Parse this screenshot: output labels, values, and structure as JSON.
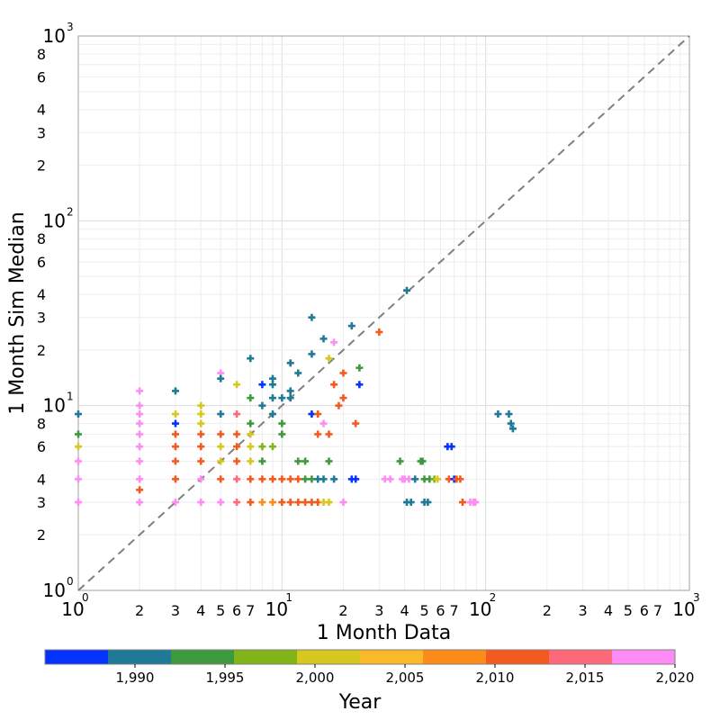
{
  "chart_data": {
    "type": "scatter",
    "title": "",
    "xlabel": "1 Month Data",
    "ylabel": "1 Month Sim Median",
    "xscale": "log",
    "yscale": "log",
    "xlim": [
      1,
      1000
    ],
    "ylim": [
      1,
      1000
    ],
    "grid": true,
    "marker": "plus",
    "reference_line": {
      "type": "y=x",
      "style": "dashed",
      "color": "#808080"
    },
    "major_ticks": [
      {
        "base": "10",
        "exp": "0"
      },
      {
        "base": "10",
        "exp": "1"
      },
      {
        "base": "10",
        "exp": "2"
      },
      {
        "base": "10",
        "exp": "3"
      }
    ],
    "minor_tick_labels": [
      "2",
      "3",
      "4",
      "5",
      "6",
      "7",
      "8"
    ],
    "x_minor_labelled": [
      "2",
      "3",
      "4",
      "5",
      "6",
      "7"
    ],
    "y_minor_labelled": [
      "2",
      "3",
      "4",
      "6",
      "8"
    ],
    "colorbar": {
      "label": "Year",
      "ticks": [
        "1,990",
        "1,995",
        "2,000",
        "2,005",
        "2,010",
        "2,015",
        "2,020"
      ],
      "tick_values": [
        1990,
        1995,
        2000,
        2005,
        2010,
        2015,
        2020
      ],
      "range": [
        1985,
        2020
      ],
      "colors": [
        "#0433ff",
        "#1e7a96",
        "#3c9a3c",
        "#80b419",
        "#d6c81e",
        "#fbb92a",
        "#fb8c19",
        "#f45a1e",
        "#ff6a7b",
        "#ff8cf4"
      ]
    },
    "points": [
      {
        "x": 1,
        "y": 9,
        "year": 1991
      },
      {
        "x": 1,
        "y": 7,
        "year": 1995
      },
      {
        "x": 1,
        "y": 6,
        "year": 2002
      },
      {
        "x": 1,
        "y": 5,
        "year": 2020
      },
      {
        "x": 1,
        "y": 4,
        "year": 2020
      },
      {
        "x": 1,
        "y": 3,
        "year": 2020
      },
      {
        "x": 2,
        "y": 12,
        "year": 2020
      },
      {
        "x": 2,
        "y": 10,
        "year": 2020
      },
      {
        "x": 2,
        "y": 9,
        "year": 2020
      },
      {
        "x": 2,
        "y": 8,
        "year": 2020
      },
      {
        "x": 2,
        "y": 7,
        "year": 2020
      },
      {
        "x": 2,
        "y": 6,
        "year": 2020
      },
      {
        "x": 2,
        "y": 5,
        "year": 2020
      },
      {
        "x": 2,
        "y": 4,
        "year": 2020
      },
      {
        "x": 2,
        "y": 3.5,
        "year": 2011
      },
      {
        "x": 2,
        "y": 3,
        "year": 2020
      },
      {
        "x": 3,
        "y": 12,
        "year": 1991
      },
      {
        "x": 3,
        "y": 9,
        "year": 2002
      },
      {
        "x": 3,
        "y": 8,
        "year": 1987
      },
      {
        "x": 3,
        "y": 7,
        "year": 2011
      },
      {
        "x": 3,
        "y": 6,
        "year": 2011
      },
      {
        "x": 3,
        "y": 5,
        "year": 2011
      },
      {
        "x": 3,
        "y": 4,
        "year": 2011
      },
      {
        "x": 3,
        "y": 3,
        "year": 2020
      },
      {
        "x": 4,
        "y": 10,
        "year": 2002
      },
      {
        "x": 4,
        "y": 9,
        "year": 2002
      },
      {
        "x": 4,
        "y": 8,
        "year": 2002
      },
      {
        "x": 4,
        "y": 7,
        "year": 2011
      },
      {
        "x": 4,
        "y": 6,
        "year": 2011
      },
      {
        "x": 4,
        "y": 5,
        "year": 2011
      },
      {
        "x": 4,
        "y": 4,
        "year": 2020
      },
      {
        "x": 4,
        "y": 3,
        "year": 2020
      },
      {
        "x": 5,
        "y": 15,
        "year": 2020
      },
      {
        "x": 5,
        "y": 14,
        "year": 1991
      },
      {
        "x": 5,
        "y": 9,
        "year": 1991
      },
      {
        "x": 5,
        "y": 7,
        "year": 2011
      },
      {
        "x": 5,
        "y": 6,
        "year": 2002
      },
      {
        "x": 5,
        "y": 5,
        "year": 2002
      },
      {
        "x": 5,
        "y": 4,
        "year": 2011
      },
      {
        "x": 5,
        "y": 3,
        "year": 2020
      },
      {
        "x": 6,
        "y": 13,
        "year": 2002
      },
      {
        "x": 6,
        "y": 9,
        "year": 2016
      },
      {
        "x": 6,
        "y": 7,
        "year": 2011
      },
      {
        "x": 6,
        "y": 6,
        "year": 2011
      },
      {
        "x": 6,
        "y": 5,
        "year": 2011
      },
      {
        "x": 6,
        "y": 4,
        "year": 2016
      },
      {
        "x": 6,
        "y": 3,
        "year": 2016
      },
      {
        "x": 7,
        "y": 18,
        "year": 1991
      },
      {
        "x": 7,
        "y": 11,
        "year": 1995
      },
      {
        "x": 7,
        "y": 8,
        "year": 1995
      },
      {
        "x": 7,
        "y": 7,
        "year": 2002
      },
      {
        "x": 7,
        "y": 6,
        "year": 2002
      },
      {
        "x": 7,
        "y": 5,
        "year": 2002
      },
      {
        "x": 7,
        "y": 4,
        "year": 2011
      },
      {
        "x": 7,
        "y": 3,
        "year": 2011
      },
      {
        "x": 8,
        "y": 13,
        "year": 1987
      },
      {
        "x": 8,
        "y": 10,
        "year": 1991
      },
      {
        "x": 8,
        "y": 6,
        "year": 1998
      },
      {
        "x": 8,
        "y": 5,
        "year": 1995
      },
      {
        "x": 8,
        "y": 4,
        "year": 2011
      },
      {
        "x": 8,
        "y": 3,
        "year": 2006
      },
      {
        "x": 9,
        "y": 14,
        "year": 1991
      },
      {
        "x": 9,
        "y": 13,
        "year": 1991
      },
      {
        "x": 9,
        "y": 11,
        "year": 1991
      },
      {
        "x": 9,
        "y": 9,
        "year": 1991
      },
      {
        "x": 9,
        "y": 6,
        "year": 1998
      },
      {
        "x": 9,
        "y": 4,
        "year": 2011
      },
      {
        "x": 9,
        "y": 3,
        "year": 2006
      },
      {
        "x": 10,
        "y": 11,
        "year": 1991
      },
      {
        "x": 10,
        "y": 8,
        "year": 1995
      },
      {
        "x": 10,
        "y": 7,
        "year": 1995
      },
      {
        "x": 10,
        "y": 4,
        "year": 2011
      },
      {
        "x": 10,
        "y": 3,
        "year": 2011
      },
      {
        "x": 11,
        "y": 17,
        "year": 1991
      },
      {
        "x": 11,
        "y": 12,
        "year": 1991
      },
      {
        "x": 11,
        "y": 11,
        "year": 1991
      },
      {
        "x": 11,
        "y": 4,
        "year": 2011
      },
      {
        "x": 11,
        "y": 3,
        "year": 2011
      },
      {
        "x": 12,
        "y": 15,
        "year": 1991
      },
      {
        "x": 12,
        "y": 5,
        "year": 1995
      },
      {
        "x": 12,
        "y": 4,
        "year": 2011
      },
      {
        "x": 12,
        "y": 3,
        "year": 2011
      },
      {
        "x": 13,
        "y": 5,
        "year": 1995
      },
      {
        "x": 13,
        "y": 4,
        "year": 1995
      },
      {
        "x": 13,
        "y": 3,
        "year": 2011
      },
      {
        "x": 14,
        "y": 30,
        "year": 1991
      },
      {
        "x": 14,
        "y": 19,
        "year": 1991
      },
      {
        "x": 14,
        "y": 9,
        "year": 1987
      },
      {
        "x": 14,
        "y": 4,
        "year": 1995
      },
      {
        "x": 14,
        "y": 3,
        "year": 2011
      },
      {
        "x": 15,
        "y": 9,
        "year": 2011
      },
      {
        "x": 15,
        "y": 7,
        "year": 2011
      },
      {
        "x": 15,
        "y": 4,
        "year": 1991
      },
      {
        "x": 15,
        "y": 3,
        "year": 2011
      },
      {
        "x": 16,
        "y": 23,
        "year": 1991
      },
      {
        "x": 16,
        "y": 8,
        "year": 2020
      },
      {
        "x": 16,
        "y": 4,
        "year": 1991
      },
      {
        "x": 16,
        "y": 3,
        "year": 2002
      },
      {
        "x": 17,
        "y": 18,
        "year": 2002
      },
      {
        "x": 17,
        "y": 7,
        "year": 2011
      },
      {
        "x": 17,
        "y": 5,
        "year": 1995
      },
      {
        "x": 17,
        "y": 3,
        "year": 2002
      },
      {
        "x": 18,
        "y": 22,
        "year": 2020
      },
      {
        "x": 18,
        "y": 13,
        "year": 2011
      },
      {
        "x": 18,
        "y": 4,
        "year": 1991
      },
      {
        "x": 19,
        "y": 10,
        "year": 2011
      },
      {
        "x": 20,
        "y": 15,
        "year": 2011
      },
      {
        "x": 20,
        "y": 11,
        "year": 2011
      },
      {
        "x": 20,
        "y": 3,
        "year": 2020
      },
      {
        "x": 22,
        "y": 27,
        "year": 1991
      },
      {
        "x": 22,
        "y": 4,
        "year": 1987
      },
      {
        "x": 23,
        "y": 8,
        "year": 2011
      },
      {
        "x": 23,
        "y": 4,
        "year": 1987
      },
      {
        "x": 24,
        "y": 16,
        "year": 1995
      },
      {
        "x": 24,
        "y": 13,
        "year": 1987
      },
      {
        "x": 30,
        "y": 25,
        "year": 2011
      },
      {
        "x": 32,
        "y": 4,
        "year": 2020
      },
      {
        "x": 34,
        "y": 4,
        "year": 2020
      },
      {
        "x": 38,
        "y": 5,
        "year": 1995
      },
      {
        "x": 39,
        "y": 4,
        "year": 2020
      },
      {
        "x": 40,
        "y": 4,
        "year": 2020
      },
      {
        "x": 41,
        "y": 42,
        "year": 1991
      },
      {
        "x": 41,
        "y": 3,
        "year": 1991
      },
      {
        "x": 42,
        "y": 4,
        "year": 2020
      },
      {
        "x": 43,
        "y": 3,
        "year": 1991
      },
      {
        "x": 45,
        "y": 4,
        "year": 1991
      },
      {
        "x": 48,
        "y": 5,
        "year": 1995
      },
      {
        "x": 49,
        "y": 5,
        "year": 1995
      },
      {
        "x": 50,
        "y": 4,
        "year": 1995
      },
      {
        "x": 50,
        "y": 3,
        "year": 1991
      },
      {
        "x": 52,
        "y": 3,
        "year": 1991
      },
      {
        "x": 53,
        "y": 4,
        "year": 1995
      },
      {
        "x": 56,
        "y": 4,
        "year": 1998
      },
      {
        "x": 58,
        "y": 4,
        "year": 2002
      },
      {
        "x": 65,
        "y": 6,
        "year": 1987
      },
      {
        "x": 66,
        "y": 4,
        "year": 2011
      },
      {
        "x": 68,
        "y": 6,
        "year": 1987
      },
      {
        "x": 70,
        "y": 4,
        "year": 1987
      },
      {
        "x": 72,
        "y": 4,
        "year": 2011
      },
      {
        "x": 75,
        "y": 4,
        "year": 2011
      },
      {
        "x": 77,
        "y": 3,
        "year": 2011
      },
      {
        "x": 84,
        "y": 3,
        "year": 2020
      },
      {
        "x": 87,
        "y": 3,
        "year": 2020
      },
      {
        "x": 89,
        "y": 3,
        "year": 2020
      },
      {
        "x": 115,
        "y": 9,
        "year": 1991
      },
      {
        "x": 130,
        "y": 9,
        "year": 1991
      },
      {
        "x": 133,
        "y": 8,
        "year": 1991
      },
      {
        "x": 136,
        "y": 7.5,
        "year": 1991
      }
    ]
  }
}
